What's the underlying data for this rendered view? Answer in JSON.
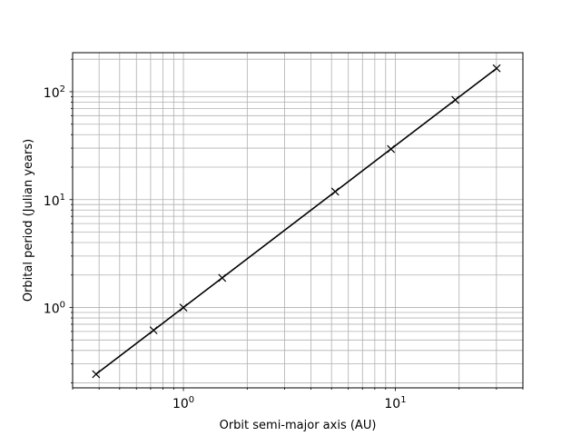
{
  "chart_data": {
    "type": "line",
    "xlabel": "Orbit semi-major axis (AU)",
    "ylabel": "Orbital period (Julian years)",
    "xscale": "log",
    "yscale": "log",
    "xlim": [
      0.3,
      40
    ],
    "ylim": [
      0.18,
      230
    ],
    "grid": "both major and minor",
    "marker": "x",
    "line_color": "#000000",
    "grid_color": "#b0b0b0",
    "x_ticks": [
      {
        "value": 1,
        "base": "10",
        "exp": "0"
      },
      {
        "value": 10,
        "base": "10",
        "exp": "1"
      }
    ],
    "y_ticks": [
      {
        "value": 1,
        "base": "10",
        "exp": "0"
      },
      {
        "value": 10,
        "base": "10",
        "exp": "1"
      },
      {
        "value": 100,
        "base": "10",
        "exp": "2"
      }
    ],
    "series": [
      {
        "x": [
          0.387,
          0.723,
          1.0,
          1.524,
          5.203,
          9.537,
          19.19,
          30.07
        ],
        "y": [
          0.241,
          0.615,
          1.0,
          1.881,
          11.86,
          29.45,
          84.02,
          164.8
        ]
      }
    ]
  }
}
